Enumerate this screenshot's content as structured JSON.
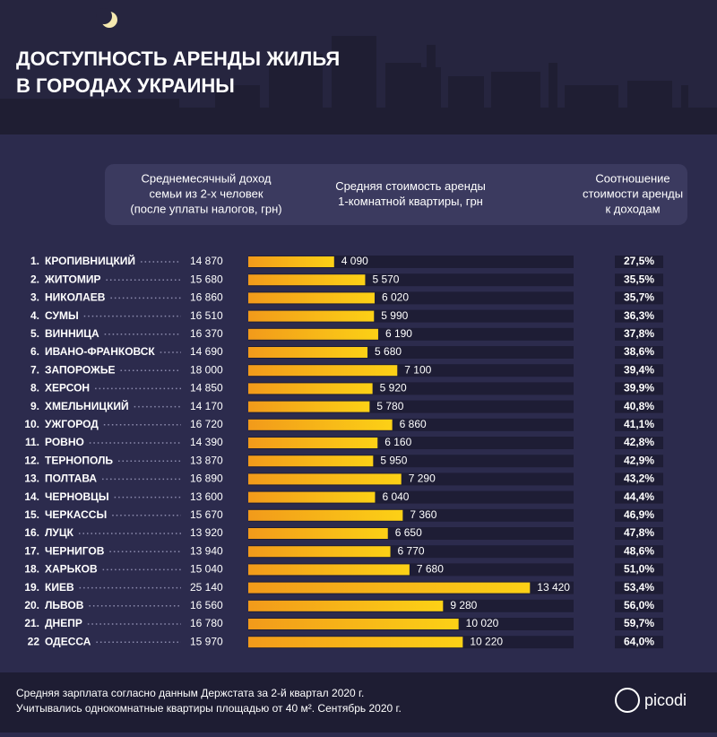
{
  "chart_data": {
    "type": "bar",
    "title": [
      "ДОСТУПНОСТЬ АРЕНДЫ ЖИЛЬЯ",
      "В ГОРОДАХ УКРАИНЫ"
    ],
    "column_headers": [
      [
        "Среднемесячный доход",
        "семьи из 2-х человек",
        "(после уплаты налогов, грн)"
      ],
      [
        "Средняя стоимость аренды",
        "1-комнатной квартиры, грн"
      ],
      [
        "Соотношение",
        "стоимости аренды",
        "к доходам"
      ]
    ],
    "ranks": [
      "1.",
      "2.",
      "3.",
      "4.",
      "5.",
      "6.",
      "7.",
      "8.",
      "9.",
      "10.",
      "11.",
      "12.",
      "13.",
      "14.",
      "15.",
      "16.",
      "17.",
      "18.",
      "19.",
      "20.",
      "21.",
      "22"
    ],
    "categories": [
      "КРОПИВНИЦКИЙ",
      "ЖИТОМИР",
      "НИКОЛАЕВ",
      "СУМЫ",
      "ВИННИЦА",
      "ИВАНО-ФРАНКОВСК",
      "ЗАПОРОЖЬЕ",
      "ХЕРСОН",
      "ХМЕЛЬНИЦКИЙ",
      "УЖГОРОД",
      "РОВНО",
      "ТЕРНОПОЛЬ",
      "ПОЛТАВА",
      "ЧЕРНОВЦЫ",
      "ЧЕРКАССЫ",
      "ЛУЦК",
      "ЧЕРНИГОВ",
      "ХАРЬКОВ",
      "КИЕВ",
      "ЛЬВОВ",
      "ДНЕПР",
      "ОДЕССА"
    ],
    "income": [
      "14 870",
      "15 680",
      "16 860",
      "16 510",
      "16 370",
      "14 690",
      "18 000",
      "14 850",
      "14 170",
      "16 720",
      "14 390",
      "13 870",
      "16 890",
      "13 600",
      "15 670",
      "13 920",
      "13 940",
      "15 040",
      "25 140",
      "16 560",
      "16 780",
      "15 970"
    ],
    "values": [
      4090,
      5570,
      6020,
      5990,
      6190,
      5680,
      7100,
      5920,
      5780,
      6860,
      6160,
      5950,
      7290,
      6040,
      7360,
      6650,
      6770,
      7680,
      13420,
      9280,
      10020,
      10220
    ],
    "value_labels": [
      "4 090",
      "5 570",
      "6 020",
      "5 990",
      "6 190",
      "5 680",
      "7 100",
      "5 920",
      "5 780",
      "6 860",
      "6 160",
      "5 950",
      "7 290",
      "6 040",
      "7 360",
      "6 650",
      "6 770",
      "7 680",
      "13 420",
      "9 280",
      "10 020",
      "10 220"
    ],
    "ratio": [
      "27,5%",
      "35,5%",
      "35,7%",
      "36,3%",
      "37,8%",
      "38,6%",
      "39,4%",
      "39,9%",
      "40,8%",
      "41,1%",
      "42,8%",
      "42,9%",
      "43,2%",
      "44,4%",
      "46,9%",
      "47,8%",
      "48,6%",
      "51,0%",
      "53,4%",
      "56,0%",
      "59,7%",
      "64,0%"
    ],
    "xlim": [
      0,
      15500
    ],
    "color": [
      "#f29a1a",
      "#fcd116"
    ],
    "footnotes": [
      "Средняя зарплата согласно данным Держстата за 2-й квартал 2020 г.",
      "Учитывались однокомнатные квартиры площадью от 40 м². Сентябрь 2020 г."
    ],
    "logo": "picodi"
  }
}
